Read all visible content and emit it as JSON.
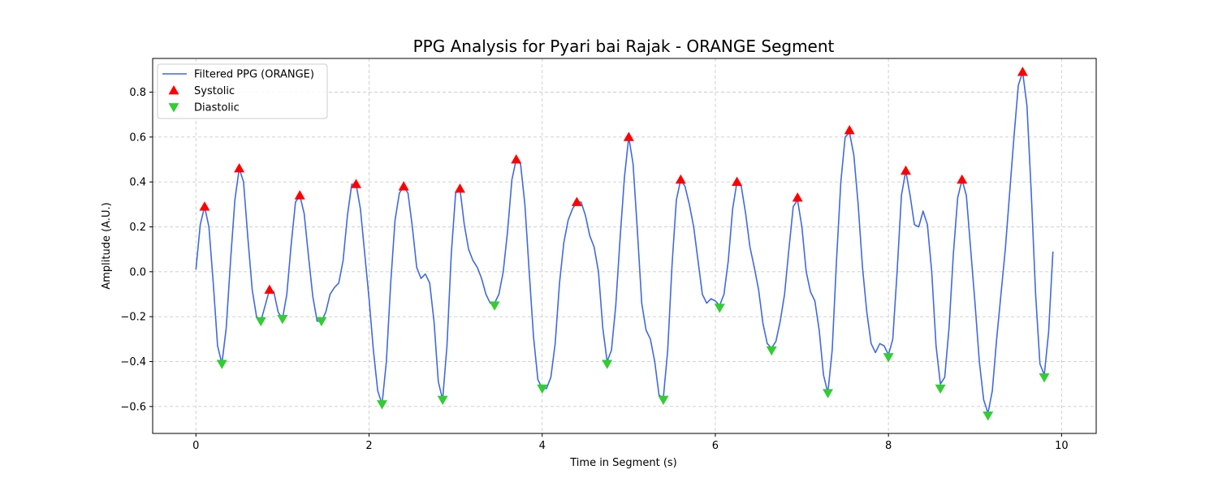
{
  "chart_data": {
    "type": "line",
    "title": "PPG Analysis for Pyari bai Rajak - ORANGE Segment",
    "xlabel": "Time in Segment (s)",
    "ylabel": "Amplitude (A.U.)",
    "xlim": [
      -0.5,
      10.4
    ],
    "ylim": [
      -0.72,
      0.95
    ],
    "xticks": [
      0,
      2,
      4,
      6,
      8,
      10
    ],
    "yticks": [
      -0.6,
      -0.4,
      -0.2,
      0.0,
      0.2,
      0.4,
      0.6,
      0.8
    ],
    "ytick_labels": [
      "−0.6",
      "−0.4",
      "−0.2",
      "0.0",
      "0.2",
      "0.4",
      "0.6",
      "0.8"
    ],
    "grid": true,
    "legend_position": "top-left",
    "series": [
      {
        "name": "Filtered PPG (ORANGE)",
        "kind": "line",
        "color": "#4169e1",
        "points": [
          [
            0.0,
            0.01
          ],
          [
            0.05,
            0.21
          ],
          [
            0.1,
            0.29
          ],
          [
            0.15,
            0.2
          ],
          [
            0.2,
            -0.05
          ],
          [
            0.25,
            -0.33
          ],
          [
            0.3,
            -0.41
          ],
          [
            0.35,
            -0.25
          ],
          [
            0.4,
            0.05
          ],
          [
            0.45,
            0.32
          ],
          [
            0.5,
            0.46
          ],
          [
            0.55,
            0.4
          ],
          [
            0.6,
            0.15
          ],
          [
            0.65,
            -0.08
          ],
          [
            0.7,
            -0.2
          ],
          [
            0.75,
            -0.22
          ],
          [
            0.8,
            -0.15
          ],
          [
            0.85,
            -0.08
          ],
          [
            0.9,
            -0.09
          ],
          [
            0.95,
            -0.18
          ],
          [
            1.0,
            -0.21
          ],
          [
            1.05,
            -0.1
          ],
          [
            1.1,
            0.12
          ],
          [
            1.15,
            0.31
          ],
          [
            1.2,
            0.34
          ],
          [
            1.25,
            0.26
          ],
          [
            1.3,
            0.07
          ],
          [
            1.35,
            -0.11
          ],
          [
            1.4,
            -0.22
          ],
          [
            1.45,
            -0.22
          ],
          [
            1.5,
            -0.18
          ],
          [
            1.55,
            -0.1
          ],
          [
            1.6,
            -0.07
          ],
          [
            1.65,
            -0.05
          ],
          [
            1.7,
            0.05
          ],
          [
            1.75,
            0.25
          ],
          [
            1.8,
            0.39
          ],
          [
            1.85,
            0.39
          ],
          [
            1.9,
            0.28
          ],
          [
            1.95,
            0.08
          ],
          [
            2.0,
            -0.12
          ],
          [
            2.05,
            -0.35
          ],
          [
            2.1,
            -0.53
          ],
          [
            2.15,
            -0.59
          ],
          [
            2.2,
            -0.4
          ],
          [
            2.25,
            -0.05
          ],
          [
            2.3,
            0.23
          ],
          [
            2.35,
            0.35
          ],
          [
            2.4,
            0.38
          ],
          [
            2.45,
            0.35
          ],
          [
            2.5,
            0.2
          ],
          [
            2.55,
            0.02
          ],
          [
            2.6,
            -0.03
          ],
          [
            2.65,
            -0.01
          ],
          [
            2.7,
            -0.05
          ],
          [
            2.75,
            -0.22
          ],
          [
            2.8,
            -0.49
          ],
          [
            2.85,
            -0.57
          ],
          [
            2.9,
            -0.33
          ],
          [
            2.95,
            0.08
          ],
          [
            3.0,
            0.35
          ],
          [
            3.05,
            0.37
          ],
          [
            3.1,
            0.21
          ],
          [
            3.15,
            0.1
          ],
          [
            3.2,
            0.05
          ],
          [
            3.25,
            0.02
          ],
          [
            3.3,
            -0.03
          ],
          [
            3.35,
            -0.1
          ],
          [
            3.4,
            -0.14
          ],
          [
            3.45,
            -0.14
          ],
          [
            3.5,
            -0.1
          ],
          [
            3.55,
            0.0
          ],
          [
            3.6,
            0.18
          ],
          [
            3.65,
            0.41
          ],
          [
            3.7,
            0.5
          ],
          [
            3.75,
            0.48
          ],
          [
            3.8,
            0.3
          ],
          [
            3.85,
            0.0
          ],
          [
            3.9,
            -0.29
          ],
          [
            3.95,
            -0.48
          ],
          [
            4.0,
            -0.52
          ],
          [
            4.05,
            -0.52
          ],
          [
            4.1,
            -0.47
          ],
          [
            4.15,
            -0.32
          ],
          [
            4.2,
            -0.05
          ],
          [
            4.25,
            0.13
          ],
          [
            4.3,
            0.23
          ],
          [
            4.35,
            0.28
          ],
          [
            4.4,
            0.31
          ],
          [
            4.45,
            0.31
          ],
          [
            4.5,
            0.25
          ],
          [
            4.55,
            0.16
          ],
          [
            4.6,
            0.11
          ],
          [
            4.65,
            0.0
          ],
          [
            4.7,
            -0.25
          ],
          [
            4.75,
            -0.4
          ],
          [
            4.8,
            -0.35
          ],
          [
            4.85,
            -0.15
          ],
          [
            4.9,
            0.15
          ],
          [
            4.95,
            0.42
          ],
          [
            5.0,
            0.6
          ],
          [
            5.05,
            0.48
          ],
          [
            5.1,
            0.18
          ],
          [
            5.15,
            -0.14
          ],
          [
            5.2,
            -0.26
          ],
          [
            5.25,
            -0.3
          ],
          [
            5.3,
            -0.4
          ],
          [
            5.35,
            -0.55
          ],
          [
            5.4,
            -0.56
          ],
          [
            5.45,
            -0.35
          ],
          [
            5.5,
            0.03
          ],
          [
            5.55,
            0.32
          ],
          [
            5.6,
            0.41
          ],
          [
            5.65,
            0.38
          ],
          [
            5.7,
            0.3
          ],
          [
            5.75,
            0.2
          ],
          [
            5.8,
            0.05
          ],
          [
            5.85,
            -0.1
          ],
          [
            5.9,
            -0.14
          ],
          [
            5.95,
            -0.12
          ],
          [
            6.0,
            -0.13
          ],
          [
            6.05,
            -0.15
          ],
          [
            6.1,
            -0.1
          ],
          [
            6.15,
            0.05
          ],
          [
            6.2,
            0.28
          ],
          [
            6.25,
            0.4
          ],
          [
            6.3,
            0.38
          ],
          [
            6.35,
            0.26
          ],
          [
            6.4,
            0.11
          ],
          [
            6.45,
            0.02
          ],
          [
            6.5,
            -0.08
          ],
          [
            6.55,
            -0.23
          ],
          [
            6.6,
            -0.32
          ],
          [
            6.65,
            -0.34
          ],
          [
            6.7,
            -0.31
          ],
          [
            6.75,
            -0.22
          ],
          [
            6.8,
            -0.1
          ],
          [
            6.85,
            0.1
          ],
          [
            6.9,
            0.29
          ],
          [
            6.95,
            0.32
          ],
          [
            7.0,
            0.2
          ],
          [
            7.05,
            0.0
          ],
          [
            7.1,
            -0.09
          ],
          [
            7.15,
            -0.13
          ],
          [
            7.2,
            -0.26
          ],
          [
            7.25,
            -0.46
          ],
          [
            7.3,
            -0.54
          ],
          [
            7.35,
            -0.35
          ],
          [
            7.4,
            0.05
          ],
          [
            7.45,
            0.4
          ],
          [
            7.5,
            0.6
          ],
          [
            7.55,
            0.62
          ],
          [
            7.6,
            0.52
          ],
          [
            7.65,
            0.3
          ],
          [
            7.7,
            0.02
          ],
          [
            7.75,
            -0.18
          ],
          [
            7.8,
            -0.32
          ],
          [
            7.85,
            -0.36
          ],
          [
            7.9,
            -0.32
          ],
          [
            7.95,
            -0.33
          ],
          [
            8.0,
            -0.37
          ],
          [
            8.05,
            -0.3
          ],
          [
            8.1,
            0.0
          ],
          [
            8.15,
            0.34
          ],
          [
            8.2,
            0.45
          ],
          [
            8.25,
            0.34
          ],
          [
            8.3,
            0.21
          ],
          [
            8.35,
            0.2
          ],
          [
            8.4,
            0.27
          ],
          [
            8.45,
            0.21
          ],
          [
            8.5,
            0.0
          ],
          [
            8.55,
            -0.33
          ],
          [
            8.6,
            -0.5
          ],
          [
            8.65,
            -0.47
          ],
          [
            8.7,
            -0.25
          ],
          [
            8.75,
            0.08
          ],
          [
            8.8,
            0.33
          ],
          [
            8.85,
            0.41
          ],
          [
            8.9,
            0.34
          ],
          [
            8.95,
            0.1
          ],
          [
            9.0,
            -0.14
          ],
          [
            9.05,
            -0.4
          ],
          [
            9.1,
            -0.57
          ],
          [
            9.15,
            -0.63
          ],
          [
            9.2,
            -0.53
          ],
          [
            9.25,
            -0.3
          ],
          [
            9.3,
            -0.1
          ],
          [
            9.35,
            0.1
          ],
          [
            9.4,
            0.35
          ],
          [
            9.45,
            0.6
          ],
          [
            9.5,
            0.83
          ],
          [
            9.55,
            0.89
          ],
          [
            9.6,
            0.74
          ],
          [
            9.65,
            0.35
          ],
          [
            9.7,
            -0.1
          ],
          [
            9.75,
            -0.41
          ],
          [
            9.8,
            -0.46
          ],
          [
            9.85,
            -0.27
          ],
          [
            9.9,
            0.09
          ]
        ]
      },
      {
        "name": "Systolic",
        "kind": "marker-up",
        "color": "#ff0000",
        "points": [
          [
            0.1,
            0.29
          ],
          [
            0.5,
            0.46
          ],
          [
            0.85,
            -0.08
          ],
          [
            1.2,
            0.34
          ],
          [
            1.85,
            0.39
          ],
          [
            2.4,
            0.38
          ],
          [
            3.05,
            0.37
          ],
          [
            3.7,
            0.5
          ],
          [
            4.4,
            0.31
          ],
          [
            5.0,
            0.6
          ],
          [
            5.6,
            0.41
          ],
          [
            6.25,
            0.4
          ],
          [
            6.95,
            0.33
          ],
          [
            7.55,
            0.63
          ],
          [
            8.2,
            0.45
          ],
          [
            8.85,
            0.41
          ],
          [
            9.55,
            0.89
          ]
        ]
      },
      {
        "name": "Diastolic",
        "kind": "marker-down",
        "color": "#32cd32",
        "points": [
          [
            0.3,
            -0.41
          ],
          [
            0.75,
            -0.22
          ],
          [
            1.0,
            -0.21
          ],
          [
            1.45,
            -0.22
          ],
          [
            2.15,
            -0.59
          ],
          [
            2.85,
            -0.57
          ],
          [
            3.45,
            -0.15
          ],
          [
            4.0,
            -0.52
          ],
          [
            4.75,
            -0.41
          ],
          [
            5.4,
            -0.57
          ],
          [
            6.05,
            -0.16
          ],
          [
            6.65,
            -0.35
          ],
          [
            7.3,
            -0.54
          ],
          [
            8.0,
            -0.38
          ],
          [
            8.6,
            -0.52
          ],
          [
            9.15,
            -0.64
          ],
          [
            9.8,
            -0.47
          ]
        ]
      }
    ]
  }
}
